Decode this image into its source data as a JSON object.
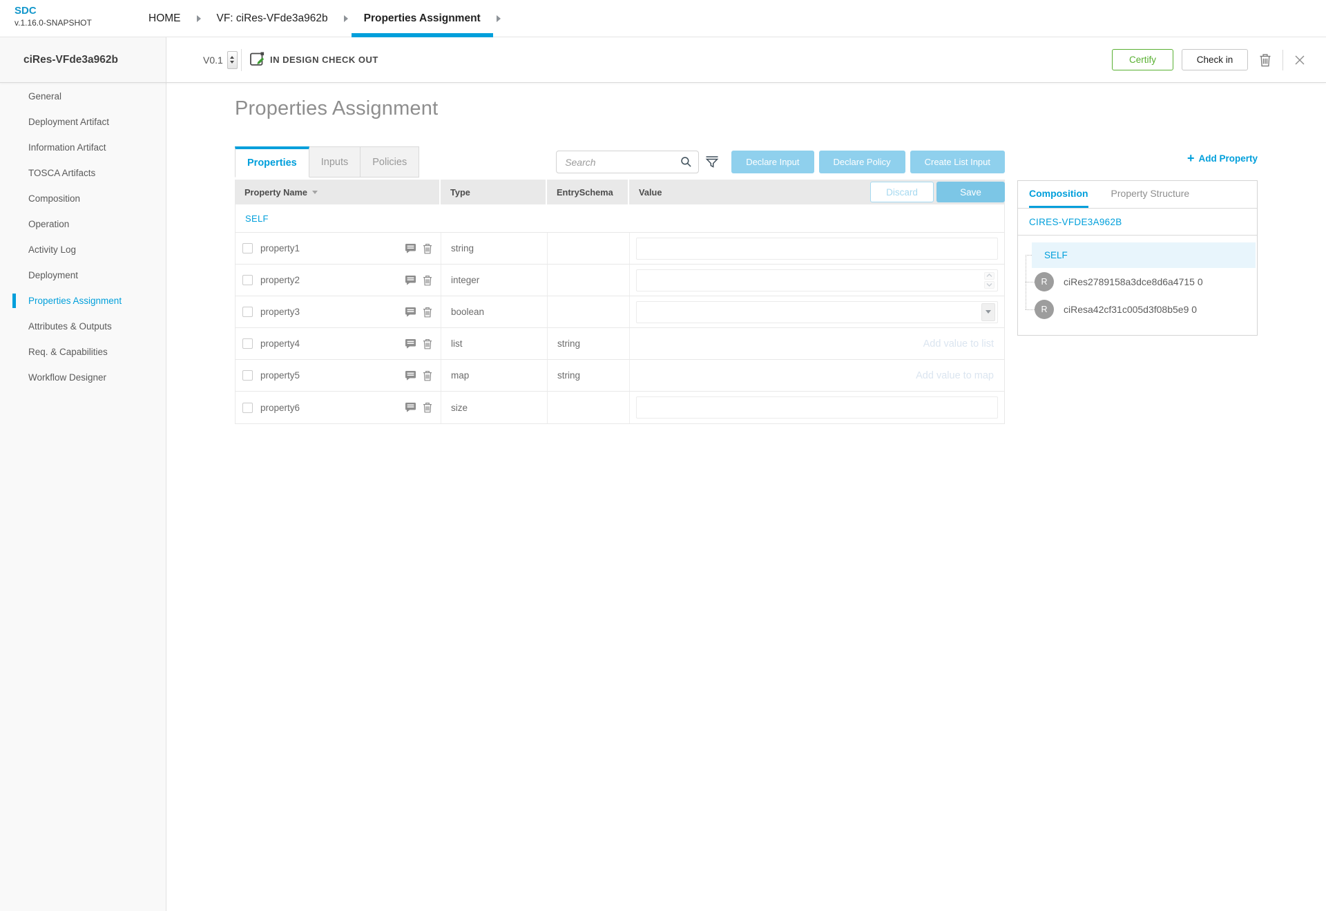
{
  "app": {
    "name": "SDC",
    "version": "v.1.16.0-SNAPSHOT"
  },
  "breadcrumbs": [
    {
      "label": "HOME",
      "active": false
    },
    {
      "label": "VF: ciRes-VFde3a962b",
      "active": false
    },
    {
      "label": "Properties Assignment",
      "active": true
    }
  ],
  "workspace": {
    "entity_name": "ciRes-VFde3a962b",
    "version": "V0.1",
    "status": "IN DESIGN CHECK OUT",
    "certify_label": "Certify",
    "checkin_label": "Check in"
  },
  "sidebar": {
    "items": [
      "General",
      "Deployment Artifact",
      "Information Artifact",
      "TOSCA Artifacts",
      "Composition",
      "Operation",
      "Activity Log",
      "Deployment",
      "Properties Assignment",
      "Attributes & Outputs",
      "Req. & Capabilities",
      "Workflow Designer"
    ],
    "active_item": "Properties Assignment"
  },
  "main": {
    "title": "Properties Assignment",
    "tabs": [
      {
        "label": "Properties",
        "active": true
      },
      {
        "label": "Inputs",
        "active": false
      },
      {
        "label": "Policies",
        "active": false
      }
    ],
    "search": {
      "placeholder": "Search"
    },
    "actions": [
      "Declare Input",
      "Declare Policy",
      "Create List Input"
    ],
    "add_property_label": "Add Property",
    "table": {
      "columns": [
        "Property Name",
        "Type",
        "EntrySchema",
        "Value"
      ],
      "discard_label": "Discard",
      "save_label": "Save",
      "group_label": "SELF",
      "rows": [
        {
          "name": "property1",
          "type": "string",
          "entry_schema": "",
          "value_control": "text"
        },
        {
          "name": "property2",
          "type": "integer",
          "entry_schema": "",
          "value_control": "number"
        },
        {
          "name": "property3",
          "type": "boolean",
          "entry_schema": "",
          "value_control": "select"
        },
        {
          "name": "property4",
          "type": "list",
          "entry_schema": "string",
          "value_control": "placeholder",
          "value_placeholder": "Add value to list"
        },
        {
          "name": "property5",
          "type": "map",
          "entry_schema": "string",
          "value_control": "placeholder",
          "value_placeholder": "Add value to map"
        },
        {
          "name": "property6",
          "type": "size",
          "entry_schema": "",
          "value_control": "text"
        }
      ]
    }
  },
  "right_panel": {
    "tabs": [
      {
        "label": "Composition",
        "active": true
      },
      {
        "label": "Property Structure",
        "active": false
      }
    ],
    "component_name": "CIRES-VFDE3A962B",
    "tree": {
      "root_label": "SELF",
      "children": [
        {
          "initial": "R",
          "label": "ciRes2789158a3dce8d6a4715 0"
        },
        {
          "initial": "R",
          "label": "ciResa42cf31c005d3f08b5e9 0"
        }
      ]
    }
  },
  "colors": {
    "accent": "#009fdb",
    "action_button": "#8fd0ed",
    "save_button": "#7cc6e6",
    "certify_green": "#58b031"
  }
}
